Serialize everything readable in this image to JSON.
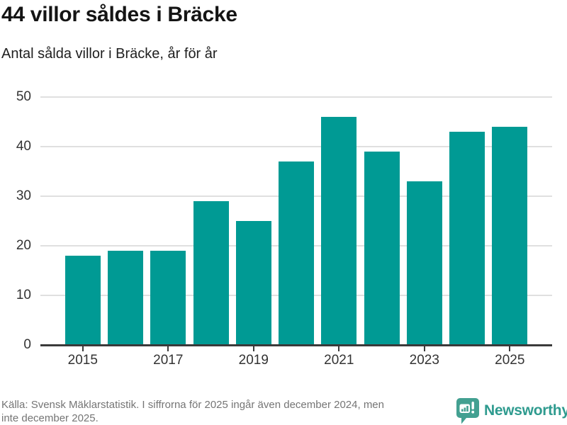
{
  "header": {
    "title": "44 villor såldes i Bräcke",
    "subtitle": "Antal sålda villor i Bräcke, år för år"
  },
  "chart_data": {
    "type": "bar",
    "title": "44 villor såldes i Bräcke",
    "subtitle": "Antal sålda villor i Bräcke, år för år",
    "categories": [
      2015,
      2016,
      2017,
      2018,
      2019,
      2020,
      2021,
      2022,
      2023,
      2024,
      2025
    ],
    "values": [
      18,
      19,
      19,
      29,
      25,
      37,
      46,
      39,
      33,
      43,
      44
    ],
    "xlabel": "",
    "ylabel": "",
    "ylim": [
      0,
      50
    ],
    "yticks": [
      0,
      10,
      20,
      30,
      40,
      50
    ],
    "xticks": [
      2015,
      2017,
      2019,
      2021,
      2023,
      2025
    ],
    "grid": true,
    "legend": false,
    "bar_color": "#009a94",
    "axis_color": "#3a3a3a",
    "gridline_color": "#e0e0e0",
    "tick_label_color": "#333333"
  },
  "footer": {
    "source_line1": "Källa: Svensk Mäklarstatistik. I siffrorna för 2025 ingår även december 2024, men",
    "source_line2": "inte december 2025.",
    "brand": "Newsworthy",
    "brand_text_color": "#2f9b8f",
    "logo_color": "#43a091"
  }
}
